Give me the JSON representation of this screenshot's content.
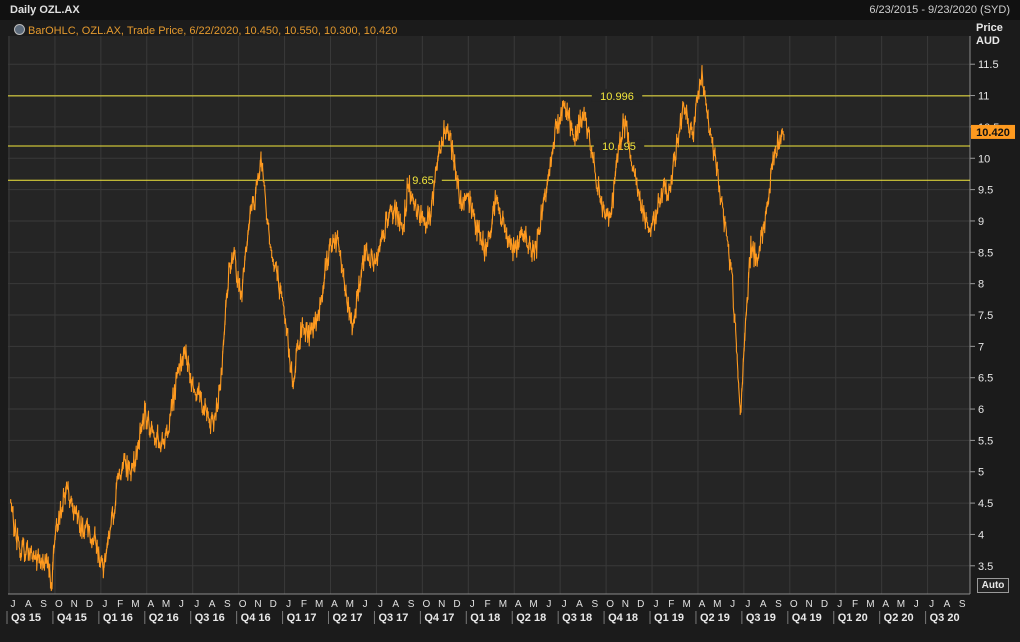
{
  "header": {
    "title": "Daily OZL.AX",
    "date_range": "6/23/2015 - 9/23/2020 (SYD)",
    "legend": "BarOHLC, OZL.AX, Trade Price, 6/22/2020, 10.450, 10.550, 10.300, 10.420",
    "legend_icon": "settings-icon"
  },
  "axis": {
    "unit_line1": "Price",
    "unit_line2": "AUD",
    "auto_label": "Auto",
    "current_price_label": "10.420"
  },
  "colors": {
    "background": "#1b1b1b",
    "plot": "#252525",
    "grid": "#3a3a3a",
    "price_line": "#ff9a1f",
    "level_line": "#f2e63c",
    "current_price_tag": "#ff9a1f"
  },
  "chart_data": {
    "type": "line",
    "title": "Daily OZL.AX",
    "ylabel": "Price AUD",
    "xlabel": "",
    "ylim": [
      3.05,
      11.95
    ],
    "yticks": [
      3.5,
      4,
      4.5,
      5,
      5.5,
      6,
      6.5,
      7,
      7.5,
      8,
      8.5,
      9,
      9.5,
      10,
      10.5,
      11,
      11.5
    ],
    "ytick_labels": [
      "3.5",
      "4",
      "4.5",
      "5",
      "5.5",
      "6",
      "6.5",
      "7",
      "7.5",
      "8",
      "8.5",
      "9",
      "9.5",
      "10",
      "10.5",
      "11",
      "11.5"
    ],
    "grid": true,
    "month_labels": [
      "J",
      "A",
      "S",
      "O",
      "N",
      "D",
      "J",
      "F",
      "M",
      "A",
      "M",
      "J",
      "J",
      "A",
      "S",
      "O",
      "N",
      "D",
      "J",
      "F",
      "M",
      "A",
      "M",
      "J",
      "J",
      "A",
      "S",
      "O",
      "N",
      "D",
      "J",
      "F",
      "M",
      "A",
      "M",
      "J",
      "J",
      "A",
      "S",
      "O",
      "N",
      "D",
      "J",
      "F",
      "M",
      "A",
      "M",
      "J",
      "J",
      "A",
      "S",
      "O",
      "N",
      "D",
      "J",
      "F",
      "M",
      "A",
      "M",
      "J",
      "J",
      "A",
      "S"
    ],
    "quarter_labels": [
      "Q3 15",
      "Q4 15",
      "Q1 16",
      "Q2 16",
      "Q3 16",
      "Q4 16",
      "Q1 17",
      "Q2 17",
      "Q3 17",
      "Q4 17",
      "Q1 18",
      "Q2 18",
      "Q3 18",
      "Q4 18",
      "Q1 19",
      "Q2 19",
      "Q3 19",
      "Q4 19",
      "Q1 20",
      "Q2 20",
      "Q3 20"
    ],
    "levels": [
      {
        "value": 10.996,
        "label": "10.996"
      },
      {
        "value": 10.195,
        "label": "10.195"
      },
      {
        "value": 9.65,
        "label": "9.65"
      }
    ],
    "last_close": 10.42,
    "series": [
      {
        "x_unit": "months from July 2015",
        "points": [
          [
            -0.15,
            4.5
          ],
          [
            0.1,
            4.1
          ],
          [
            0.4,
            3.8
          ],
          [
            0.8,
            3.75
          ],
          [
            1.2,
            3.7
          ],
          [
            1.6,
            3.6
          ],
          [
            2.0,
            3.55
          ],
          [
            2.3,
            3.5
          ],
          [
            2.55,
            3.25
          ],
          [
            2.7,
            3.9
          ],
          [
            3.0,
            4.2
          ],
          [
            3.3,
            4.6
          ],
          [
            3.6,
            4.7
          ],
          [
            3.9,
            4.45
          ],
          [
            4.2,
            4.25
          ],
          [
            4.6,
            4.1
          ],
          [
            5.0,
            4.05
          ],
          [
            5.3,
            3.95
          ],
          [
            5.6,
            3.7
          ],
          [
            5.85,
            3.45
          ],
          [
            6.1,
            3.6
          ],
          [
            6.4,
            4.1
          ],
          [
            6.7,
            4.6
          ],
          [
            7.0,
            5.05
          ],
          [
            7.3,
            5.1
          ],
          [
            7.7,
            5.0
          ],
          [
            8.0,
            5.2
          ],
          [
            8.3,
            5.55
          ],
          [
            8.6,
            5.9
          ],
          [
            8.9,
            5.75
          ],
          [
            9.2,
            5.6
          ],
          [
            9.5,
            5.55
          ],
          [
            9.8,
            5.4
          ],
          [
            10.1,
            5.7
          ],
          [
            10.4,
            6.05
          ],
          [
            10.7,
            6.45
          ],
          [
            11.0,
            6.75
          ],
          [
            11.3,
            6.85
          ],
          [
            11.5,
            6.6
          ],
          [
            11.8,
            6.35
          ],
          [
            12.1,
            6.25
          ],
          [
            12.4,
            6.1
          ],
          [
            12.7,
            5.9
          ],
          [
            13.0,
            5.75
          ],
          [
            13.3,
            6.0
          ],
          [
            13.6,
            6.6
          ],
          [
            13.9,
            7.6
          ],
          [
            14.1,
            8.2
          ],
          [
            14.4,
            8.5
          ],
          [
            14.6,
            8.2
          ],
          [
            14.9,
            7.8
          ],
          [
            15.2,
            8.6
          ],
          [
            15.5,
            9.1
          ],
          [
            15.8,
            9.35
          ],
          [
            16.0,
            9.7
          ],
          [
            16.2,
            10.0
          ],
          [
            16.4,
            9.6
          ],
          [
            16.6,
            9.1
          ],
          [
            16.8,
            8.6
          ],
          [
            17.0,
            8.3
          ],
          [
            17.3,
            8.1
          ],
          [
            17.6,
            7.6
          ],
          [
            17.9,
            7.2
          ],
          [
            18.1,
            6.75
          ],
          [
            18.3,
            6.45
          ],
          [
            18.6,
            7.05
          ],
          [
            18.9,
            7.3
          ],
          [
            19.2,
            7.2
          ],
          [
            19.5,
            7.25
          ],
          [
            19.8,
            7.4
          ],
          [
            20.1,
            7.75
          ],
          [
            20.4,
            8.25
          ],
          [
            20.7,
            8.6
          ],
          [
            21.0,
            8.75
          ],
          [
            21.3,
            8.55
          ],
          [
            21.6,
            8.1
          ],
          [
            21.9,
            7.6
          ],
          [
            22.2,
            7.35
          ],
          [
            22.5,
            7.8
          ],
          [
            22.8,
            8.3
          ],
          [
            23.1,
            8.55
          ],
          [
            23.4,
            8.4
          ],
          [
            23.7,
            8.3
          ],
          [
            24.0,
            8.55
          ],
          [
            24.3,
            8.9
          ],
          [
            24.6,
            9.1
          ],
          [
            24.9,
            9.2
          ],
          [
            25.2,
            9.0
          ],
          [
            25.5,
            8.9
          ],
          [
            25.8,
            9.6
          ],
          [
            26.1,
            9.35
          ],
          [
            26.4,
            9.05
          ],
          [
            26.7,
            9.15
          ],
          [
            27.0,
            9.0
          ],
          [
            27.3,
            9.1
          ],
          [
            27.6,
            9.8
          ],
          [
            27.9,
            10.2
          ],
          [
            28.2,
            10.5
          ],
          [
            28.5,
            10.4
          ],
          [
            28.8,
            10.0
          ],
          [
            29.1,
            9.5
          ],
          [
            29.4,
            9.2
          ],
          [
            29.7,
            9.35
          ],
          [
            30.0,
            9.15
          ],
          [
            30.3,
            8.9
          ],
          [
            30.6,
            8.7
          ],
          [
            30.9,
            8.5
          ],
          [
            31.2,
            8.95
          ],
          [
            31.5,
            9.3
          ],
          [
            31.8,
            9.1
          ],
          [
            32.1,
            8.9
          ],
          [
            32.4,
            8.7
          ],
          [
            32.7,
            8.55
          ],
          [
            33.0,
            8.55
          ],
          [
            33.3,
            8.8
          ],
          [
            33.6,
            8.7
          ],
          [
            33.9,
            8.5
          ],
          [
            34.2,
            8.6
          ],
          [
            34.5,
            9.1
          ],
          [
            34.8,
            9.5
          ],
          [
            35.1,
            9.95
          ],
          [
            35.4,
            10.4
          ],
          [
            35.7,
            10.6
          ],
          [
            36.0,
            10.9
          ],
          [
            36.3,
            10.7
          ],
          [
            36.6,
            10.3
          ],
          [
            36.9,
            10.45
          ],
          [
            37.2,
            10.7
          ],
          [
            37.5,
            10.5
          ],
          [
            37.8,
            10.05
          ],
          [
            38.1,
            9.7
          ],
          [
            38.4,
            9.3
          ],
          [
            38.7,
            9.0
          ],
          [
            39.0,
            9.1
          ],
          [
            39.3,
            9.6
          ],
          [
            39.6,
            10.2
          ],
          [
            39.9,
            10.6
          ],
          [
            40.2,
            10.3
          ],
          [
            40.5,
            9.9
          ],
          [
            40.8,
            9.5
          ],
          [
            41.1,
            9.2
          ],
          [
            41.4,
            8.95
          ],
          [
            41.7,
            8.8
          ],
          [
            42.0,
            9.05
          ],
          [
            42.3,
            9.4
          ],
          [
            42.6,
            9.55
          ],
          [
            42.9,
            9.35
          ],
          [
            43.2,
            10.0
          ],
          [
            43.5,
            10.4
          ],
          [
            43.8,
            10.9
          ],
          [
            44.1,
            10.6
          ],
          [
            44.4,
            10.3
          ],
          [
            44.7,
            10.95
          ],
          [
            45.0,
            11.3
          ],
          [
            45.2,
            10.9
          ],
          [
            45.5,
            10.4
          ],
          [
            45.8,
            10.1
          ],
          [
            46.1,
            9.6
          ],
          [
            46.4,
            9.1
          ],
          [
            46.7,
            8.6
          ],
          [
            47.0,
            8.0
          ],
          [
            47.2,
            7.2
          ],
          [
            47.4,
            6.3
          ],
          [
            47.55,
            5.9
          ],
          [
            47.7,
            6.7
          ],
          [
            47.95,
            7.7
          ],
          [
            48.2,
            8.6
          ],
          [
            48.5,
            8.4
          ],
          [
            48.8,
            8.7
          ],
          [
            49.1,
            8.9
          ],
          [
            49.4,
            9.5
          ],
          [
            49.7,
            10.0
          ],
          [
            50.0,
            10.3
          ],
          [
            50.2,
            10.45
          ],
          [
            50.4,
            10.42
          ]
        ]
      }
    ]
  }
}
